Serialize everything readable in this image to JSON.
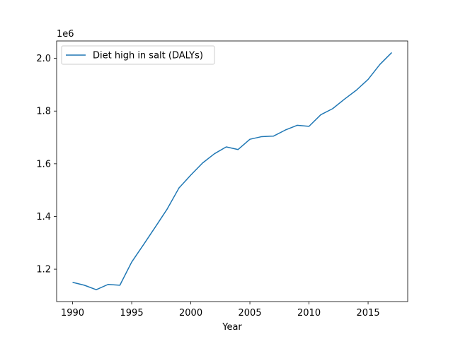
{
  "chart_data": {
    "type": "line",
    "xlabel": "Year",
    "ylabel": "",
    "offset_label": "1e6",
    "legend_position": "upper-left",
    "grid": false,
    "xlim": [
      1988.65,
      2018.35
    ],
    "ylim": [
      1077000,
      2066000
    ],
    "x_ticks": [
      1990,
      1995,
      2000,
      2005,
      2010,
      2015
    ],
    "x_tick_labels": [
      "1990",
      "1995",
      "2000",
      "2005",
      "2010",
      "2015"
    ],
    "y_ticks": [
      1200000,
      1400000,
      1600000,
      1800000,
      2000000
    ],
    "y_tick_labels": [
      "1.2",
      "1.4",
      "1.6",
      "1.8",
      "2.0"
    ],
    "series": [
      {
        "name": "Diet high in salt (DALYs)",
        "color": "#1f77b4",
        "x": [
          1990,
          1991,
          1992,
          1993,
          1994,
          1995,
          1996,
          1997,
          1998,
          1999,
          2000,
          2001,
          2002,
          2003,
          2004,
          2005,
          2006,
          2007,
          2008,
          2009,
          2010,
          2011,
          2012,
          2013,
          2014,
          2015,
          2016,
          2017
        ],
        "y": [
          1150000,
          1139000,
          1122000,
          1142000,
          1139000,
          1227000,
          1293000,
          1360000,
          1428000,
          1508000,
          1557000,
          1603000,
          1638000,
          1664000,
          1654000,
          1693000,
          1703000,
          1705000,
          1728000,
          1746000,
          1742000,
          1786000,
          1809000,
          1845000,
          1879000,
          1920000,
          1977000,
          2022000
        ]
      }
    ]
  }
}
